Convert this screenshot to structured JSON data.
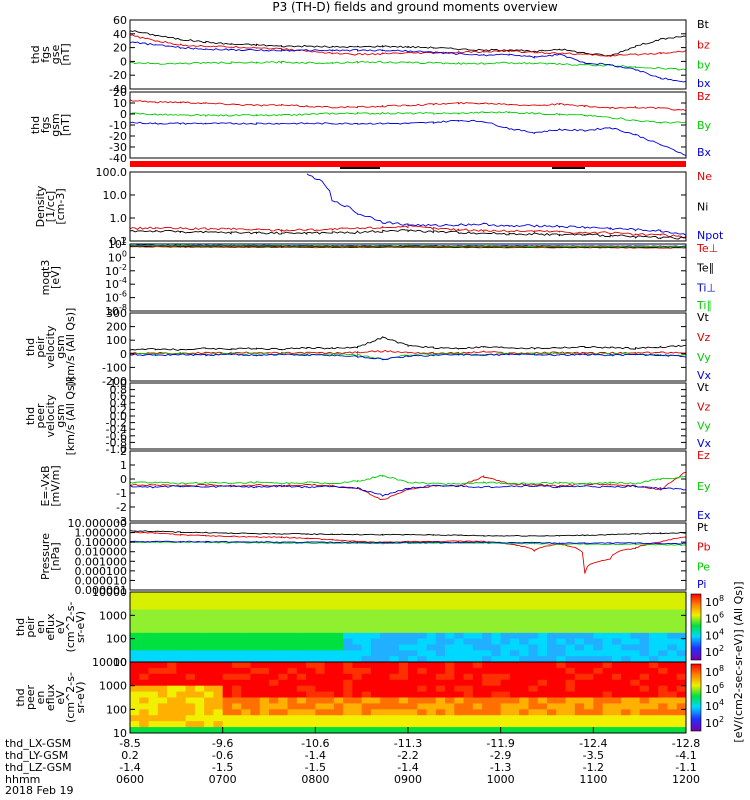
{
  "title": "P3 (TH-D) fields and ground moments overview",
  "colors": {
    "black": "#000000",
    "red": "#e00000",
    "green": "#00cc00",
    "blue": "#0000dd"
  },
  "xaxis": {
    "rows": [
      {
        "label": "thd_LX-GSM",
        "values": [
          "-8.5",
          "-9.6",
          "-10.6",
          "-11.3",
          "-11.9",
          "-12.4",
          "-12.8"
        ]
      },
      {
        "label": "thd_LY-GSM",
        "values": [
          "0.2",
          "-0.6",
          "-1.4",
          "-2.2",
          "-2.9",
          "-3.5",
          "-4.1"
        ]
      },
      {
        "label": "thd_LZ-GSM",
        "values": [
          "-1.4",
          "-1.5",
          "-1.5",
          "-1.4",
          "-1.3",
          "-1.2",
          "-1.1"
        ]
      },
      {
        "label": "hhmm",
        "values": [
          "0600",
          "0700",
          "0800",
          "0900",
          "1000",
          "1100",
          "1200"
        ]
      }
    ],
    "date": "2018 Feb 19"
  },
  "colorbar_label": "[eV/(cm2-sec-sr-eV)] (All Qs)]",
  "chart_data": [
    {
      "id": "fgs_gse",
      "type": "line",
      "ylabel": [
        "thd",
        "fgs",
        "gse",
        "[nT]"
      ],
      "ylim": [
        -40,
        60
      ],
      "yticks": [
        "60",
        "40",
        "20",
        "0",
        "-20",
        "-40"
      ],
      "log": false,
      "series": [
        {
          "name": "Bt",
          "color": "black",
          "values": [
            45,
            38,
            32,
            28,
            25,
            24,
            22,
            22,
            21,
            21,
            22,
            21,
            20,
            18,
            16,
            17,
            14,
            18,
            12,
            8,
            22,
            32,
            37
          ]
        },
        {
          "name": "bz",
          "color": "red",
          "values": [
            38,
            30,
            24,
            22,
            21,
            20,
            18,
            15,
            12,
            10,
            11,
            12,
            12,
            13,
            14,
            15,
            13,
            12,
            10,
            8,
            10,
            12,
            15
          ]
        },
        {
          "name": "by",
          "color": "green",
          "values": [
            -2,
            -3,
            -3,
            -2,
            -2,
            -2,
            -1,
            -2,
            -2,
            -1,
            -1,
            -2,
            -2,
            -3,
            -3,
            -2,
            -3,
            -4,
            -5,
            -6,
            -8,
            -10,
            -12
          ]
        },
        {
          "name": "bx",
          "color": "blue",
          "values": [
            28,
            24,
            20,
            18,
            17,
            16,
            16,
            16,
            16,
            16,
            16,
            15,
            13,
            11,
            9,
            10,
            6,
            10,
            -2,
            -5,
            -12,
            -24,
            -30
          ]
        }
      ]
    },
    {
      "id": "fgs_gsm",
      "type": "line",
      "ylabel": [
        "thd",
        "fgs",
        "gsm",
        "[nT]"
      ],
      "ylim": [
        -45,
        20
      ],
      "yticks": [
        "20",
        "10",
        "0",
        "-10",
        "-20",
        "-30",
        "-40"
      ],
      "log": false,
      "series": [
        {
          "name": "Bz",
          "color": "red",
          "values": [
            12,
            10,
            10,
            9,
            8,
            7,
            7,
            6,
            5,
            5,
            6,
            7,
            8,
            9,
            9,
            8,
            7,
            8,
            6,
            4,
            5,
            4,
            2
          ]
        },
        {
          "name": "By",
          "color": "green",
          "values": [
            -1,
            -2,
            -3,
            -3,
            -3,
            -3,
            -3,
            -2,
            -1,
            -1,
            -1,
            -1,
            -1,
            -1,
            0,
            0,
            -1,
            -2,
            -3,
            -5,
            -8,
            -10,
            -10
          ]
        },
        {
          "name": "Bx",
          "color": "blue",
          "values": [
            -10,
            -11,
            -11,
            -11,
            -11,
            -11,
            -11,
            -11,
            -11,
            -11,
            -11,
            -11,
            -10,
            -8,
            -9,
            -16,
            -20,
            -17,
            -18,
            -15,
            -22,
            -32,
            -42
          ]
        }
      ]
    },
    {
      "id": "density",
      "type": "line",
      "ylabel": [
        "Density",
        "[1/cc]",
        "[cm-3]"
      ],
      "ylim": [
        0.1,
        200
      ],
      "yticks": [
        "100.0",
        "10.0",
        "1.0",
        "0.1"
      ],
      "log": true,
      "series": [
        {
          "name": "Ne",
          "color": "red",
          "values": [
            0.4,
            0.42,
            0.4,
            0.38,
            0.38,
            0.35,
            0.33,
            0.35,
            0.36,
            0.4,
            0.45,
            0.5,
            0.4,
            0.35,
            0.32,
            0.3,
            0.3,
            0.28,
            0.25,
            0.25,
            0.2,
            0.2,
            0.15
          ]
        },
        {
          "name": "Ni",
          "color": "black",
          "values": [
            0.3,
            0.3,
            0.28,
            0.26,
            0.25,
            0.25,
            0.24,
            0.24,
            0.25,
            0.26,
            0.3,
            0.32,
            0.28,
            0.26,
            0.24,
            0.22,
            0.22,
            0.2,
            0.2,
            0.18,
            0.16,
            0.15,
            0.14
          ]
        },
        {
          "name": "Npot",
          "color": "blue",
          "values": [
            null,
            null,
            null,
            null,
            null,
            null,
            null,
            150,
            8,
            2,
            0.8,
            0.6,
            0.55,
            0.6,
            0.65,
            0.5,
            0.55,
            0.5,
            0.45,
            0.4,
            0.35,
            0.3,
            0.2
          ]
        }
      ]
    },
    {
      "id": "temperature",
      "type": "line",
      "ylabel": [
        "moqt3",
        "[eV]"
      ],
      "ylim": [
        1e-09,
        1000
      ],
      "yticks": [
        "10^2",
        "10^0",
        "10^-2",
        "10^-4",
        "10^-6",
        "10^-8"
      ],
      "log": true,
      "series": [
        {
          "name": "Te⊥",
          "color": "red",
          "values": [
            300,
            300,
            280,
            280,
            260,
            260,
            250,
            250,
            240,
            240,
            250,
            250,
            240,
            240,
            230,
            230,
            230,
            220,
            220,
            210,
            200,
            200,
            190
          ]
        },
        {
          "name": "Te∥",
          "color": "black",
          "values": [
            400,
            390,
            380,
            370,
            360,
            350,
            340,
            340,
            330,
            330,
            340,
            340,
            330,
            320,
            320,
            310,
            310,
            300,
            300,
            290,
            280,
            280,
            270
          ]
        },
        {
          "name": "Ti⊥",
          "color": "blue",
          "values": [
            600,
            600,
            580,
            560,
            550,
            540,
            530,
            520,
            510,
            500,
            520,
            530,
            510,
            500,
            490,
            480,
            470,
            460,
            450,
            440,
            430,
            420,
            400
          ]
        },
        {
          "name": "Ti∥",
          "color": "green",
          "values": [
            500,
            500,
            480,
            470,
            460,
            450,
            440,
            430,
            420,
            410,
            430,
            440,
            420,
            410,
            400,
            390,
            380,
            370,
            360,
            350,
            340,
            330,
            320
          ]
        }
      ]
    },
    {
      "id": "peir_velocity",
      "type": "line",
      "ylabel": [
        "thd",
        "peir",
        "velocity",
        "gsm",
        "[km/s (All Qs)]"
      ],
      "ylim": [
        -200,
        300
      ],
      "yticks": [
        "300",
        "200",
        "100",
        "0",
        "-100",
        "-200"
      ],
      "log": false,
      "series": [
        {
          "name": "Vt",
          "color": "black",
          "values": [
            30,
            35,
            30,
            40,
            35,
            40,
            35,
            45,
            40,
            50,
            120,
            60,
            45,
            40,
            50,
            45,
            40,
            45,
            50,
            45,
            40,
            50,
            60
          ]
        },
        {
          "name": "Vz",
          "color": "red",
          "values": [
            5,
            5,
            3,
            8,
            5,
            10,
            5,
            8,
            5,
            10,
            20,
            10,
            5,
            5,
            15,
            5,
            5,
            10,
            5,
            5,
            5,
            10,
            10
          ]
        },
        {
          "name": "Vy",
          "color": "green",
          "values": [
            0,
            0,
            0,
            -5,
            0,
            0,
            0,
            -5,
            0,
            -10,
            -40,
            -10,
            0,
            0,
            -10,
            0,
            0,
            0,
            -5,
            0,
            0,
            -10,
            -10
          ]
        },
        {
          "name": "Vx",
          "color": "blue",
          "values": [
            -5,
            -10,
            -5,
            -10,
            -5,
            -10,
            -5,
            -10,
            -10,
            -20,
            -40,
            -20,
            -10,
            -5,
            -10,
            -5,
            -5,
            -10,
            -5,
            -10,
            -5,
            -10,
            -20
          ]
        }
      ]
    },
    {
      "id": "peer_velocity",
      "type": "line",
      "ylabel": [
        "thd",
        "peer",
        "velocity",
        "gsm",
        "[km/s (All Qs)]"
      ],
      "ylim": [
        -1,
        1
      ],
      "yticks": [
        "1.0",
        "0.8",
        "0.6",
        "0.4",
        "0.2",
        "0.0",
        "-0.2",
        "-0.4",
        "-0.6",
        "-0.8",
        "-1.0"
      ],
      "log": false,
      "series": [
        {
          "name": "Vt",
          "color": "black",
          "values": []
        },
        {
          "name": "Vz",
          "color": "red",
          "values": []
        },
        {
          "name": "Vy",
          "color": "green",
          "values": []
        },
        {
          "name": "Vx",
          "color": "blue",
          "values": []
        }
      ]
    },
    {
      "id": "efield",
      "type": "line",
      "ylabel": [
        "E=-VxB",
        "[mV/m]"
      ],
      "ylim": [
        -3,
        3
      ],
      "yticks": [
        "2",
        "1",
        "0",
        "-1",
        "-2",
        "-3"
      ],
      "log": false,
      "series": [
        {
          "name": "Ez",
          "color": "red",
          "values": [
            0.1,
            0.1,
            0,
            0.1,
            0,
            0.1,
            0,
            0.1,
            0,
            -0.2,
            -1.2,
            -0.3,
            0,
            0,
            0.8,
            0.2,
            0.1,
            0,
            0.2,
            0.1,
            0,
            -0.3,
            1.2
          ]
        },
        {
          "name": "Ey",
          "color": "green",
          "values": [
            0.3,
            0.3,
            0.2,
            0.3,
            0.2,
            0.3,
            0.2,
            0.3,
            0.2,
            0.4,
            0.9,
            0.3,
            0.2,
            0.2,
            0.3,
            0.2,
            0.2,
            0.3,
            0.2,
            0.3,
            0.2,
            0.6,
            0.8
          ]
        },
        {
          "name": "Ex",
          "color": "blue",
          "values": [
            0,
            -0.1,
            0,
            -0.1,
            0,
            -0.1,
            0,
            -0.1,
            0,
            -0.2,
            -0.8,
            -0.2,
            0,
            0,
            -0.1,
            0,
            0,
            -0.1,
            0,
            -0.1,
            0,
            -0.2,
            -0.3
          ]
        }
      ]
    },
    {
      "id": "pressure",
      "type": "line",
      "ylabel": [
        "Pressure",
        "[nPa]"
      ],
      "ylim": [
        1e-07,
        10
      ],
      "yticks": [
        "10.000000",
        "1.000000",
        "0.100000",
        "0.010000",
        "0.001000",
        "0.000100",
        "0.000010",
        "0.000001"
      ],
      "log": true,
      "series": [
        {
          "name": "Pt",
          "color": "black",
          "values": [
            1.2,
            1.0,
            0.8,
            0.7,
            0.6,
            0.55,
            0.5,
            0.48,
            0.45,
            0.42,
            0.4,
            0.4,
            0.38,
            0.35,
            0.3,
            0.3,
            0.3,
            0.3,
            0.35,
            0.4,
            0.5,
            0.6,
            0.7
          ]
        },
        {
          "name": "Pb",
          "color": "red",
          "values": [
            0.8,
            0.6,
            0.4,
            0.3,
            0.25,
            0.22,
            0.2,
            0.15,
            0.1,
            0.06,
            0.05,
            0.06,
            0.06,
            0.07,
            0.06,
            0.03,
            0.005,
            0.03,
            1e-05,
            0.0005,
            0.01,
            0.05,
            0.2
          ]
        },
        {
          "name": "Pe",
          "color": "green",
          "values": [
            0.05,
            0.05,
            0.05,
            0.05,
            0.045,
            0.045,
            0.04,
            0.04,
            0.04,
            0.04,
            0.035,
            0.04,
            0.04,
            0.04,
            0.04,
            0.035,
            0.035,
            0.03,
            0.03,
            0.03,
            0.03,
            0.025,
            0.025
          ]
        },
        {
          "name": "Pi",
          "color": "blue",
          "values": [
            0.06,
            0.06,
            0.06,
            0.06,
            0.055,
            0.055,
            0.05,
            0.05,
            0.05,
            0.05,
            0.045,
            0.05,
            0.05,
            0.05,
            0.05,
            0.045,
            0.045,
            0.04,
            0.04,
            0.04,
            0.04,
            0.035,
            0.035
          ]
        }
      ]
    },
    {
      "id": "peir_spectrogram",
      "type": "heatmap",
      "ylabel": [
        "thd",
        "peir",
        "en",
        "eflux",
        "eV",
        "(cm^2-s-",
        "sr-eV)"
      ],
      "ylim": [
        7,
        25000
      ],
      "yticks": [
        "10000",
        "1000",
        "100",
        "10"
      ],
      "log": true,
      "colorbar": {
        "ticks": [
          "10^8",
          "10^6",
          "10^4",
          "10^2"
        ]
      }
    },
    {
      "id": "peer_spectrogram",
      "type": "heatmap",
      "ylabel": [
        "thd",
        "peer",
        "en",
        "eflux",
        "eV",
        "(cm^2-s-",
        "sr-eV)"
      ],
      "ylim": [
        7,
        25000
      ],
      "yticks": [
        "10000",
        "1000",
        "100",
        "10"
      ],
      "log": true,
      "colorbar": {
        "ticks": [
          "10^8",
          "10^6",
          "10^4",
          "10^2"
        ]
      }
    }
  ]
}
